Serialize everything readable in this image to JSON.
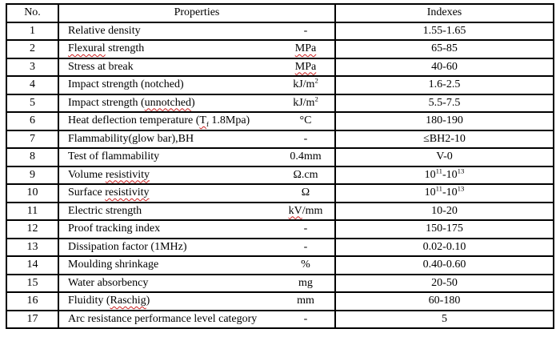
{
  "page": {
    "background": "#ffffff",
    "border_color": "#000000",
    "spellcheck_squiggle_color": "#cc2020"
  },
  "table": {
    "headers": {
      "no": "No.",
      "properties": "Properties",
      "indexes": "Indexes"
    },
    "rows": [
      {
        "no": "1",
        "property": [
          {
            "t": "Relative density"
          }
        ],
        "unit": [
          {
            "t": "-"
          }
        ],
        "index": [
          {
            "t": "1.55-1.65"
          }
        ]
      },
      {
        "no": "2",
        "property": [
          {
            "t": "Flexural",
            "sq": true
          },
          {
            "t": " strength"
          }
        ],
        "unit": [
          {
            "t": "MPa",
            "sq": true
          }
        ],
        "index": [
          {
            "t": "65-85"
          }
        ]
      },
      {
        "no": "3",
        "property": [
          {
            "t": "Stress at break"
          }
        ],
        "unit": [
          {
            "t": "MPa",
            "sq": true
          }
        ],
        "index": [
          {
            "t": "40-60"
          }
        ]
      },
      {
        "no": "4",
        "property": [
          {
            "t": "Impact strength (notched)"
          }
        ],
        "unit": [
          {
            "t": "kJ/m"
          },
          {
            "t": "2",
            "sup": true
          }
        ],
        "index": [
          {
            "t": "1.6-2.5"
          }
        ]
      },
      {
        "no": "5",
        "property": [
          {
            "t": "Impact strength ("
          },
          {
            "t": "unnotched",
            "sq": true
          },
          {
            "t": ")"
          }
        ],
        "unit": [
          {
            "t": "kJ/m"
          },
          {
            "t": "2",
            "sup": true
          }
        ],
        "index": [
          {
            "t": "5.5-7.5"
          }
        ]
      },
      {
        "no": "6",
        "property": [
          {
            "t": "Heat deflection temperature ("
          },
          {
            "t": "T",
            "sq": true
          },
          {
            "t": "f",
            "sub": true,
            "sq": true
          },
          {
            "t": " 1.8Mpa)"
          }
        ],
        "unit": [
          {
            "t": "°C"
          }
        ],
        "index": [
          {
            "t": "180-190"
          }
        ]
      },
      {
        "no": "7",
        "property": [
          {
            "t": "Flammability(glow bar),BH"
          }
        ],
        "unit": [
          {
            "t": "-"
          }
        ],
        "index": [
          {
            "t": "≤BH2-10"
          }
        ]
      },
      {
        "no": "8",
        "property": [
          {
            "t": "Test of flammability"
          }
        ],
        "unit": [
          {
            "t": "0.4mm"
          }
        ],
        "index": [
          {
            "t": "V-0"
          }
        ]
      },
      {
        "no": "9",
        "property": [
          {
            "t": "Volume "
          },
          {
            "t": "resistivity",
            "sq": true
          }
        ],
        "unit": [
          {
            "t": "Ω.cm"
          }
        ],
        "index": [
          {
            "t": "10"
          },
          {
            "t": "11",
            "sup": true
          },
          {
            "t": "-10"
          },
          {
            "t": "13",
            "sup": true
          }
        ]
      },
      {
        "no": "10",
        "property": [
          {
            "t": "Surface "
          },
          {
            "t": "resistivity",
            "sq": true
          }
        ],
        "unit": [
          {
            "t": "Ω"
          }
        ],
        "index": [
          {
            "t": "10"
          },
          {
            "t": "11",
            "sup": true
          },
          {
            "t": "-10"
          },
          {
            "t": "13",
            "sup": true
          }
        ]
      },
      {
        "no": "11",
        "property": [
          {
            "t": "Electric strength"
          }
        ],
        "unit": [
          {
            "t": "kV",
            "sq": true
          },
          {
            "t": "/mm"
          }
        ],
        "index": [
          {
            "t": "10-20"
          }
        ]
      },
      {
        "no": "12",
        "property": [
          {
            "t": "Proof tracking index"
          }
        ],
        "unit": [
          {
            "t": "-"
          }
        ],
        "index": [
          {
            "t": "150-175"
          }
        ]
      },
      {
        "no": "13",
        "property": [
          {
            "t": "Dissipation factor (1MHz)"
          }
        ],
        "unit": [
          {
            "t": "-"
          }
        ],
        "index": [
          {
            "t": "0.02-0.10"
          }
        ]
      },
      {
        "no": "14",
        "property": [
          {
            "t": "Moulding shrinkage"
          }
        ],
        "unit": [
          {
            "t": "%"
          }
        ],
        "index": [
          {
            "t": "0.40-0.60"
          }
        ]
      },
      {
        "no": "15",
        "property": [
          {
            "t": "Water absorbency"
          }
        ],
        "unit": [
          {
            "t": "mg"
          }
        ],
        "index": [
          {
            "t": "20-50"
          }
        ]
      },
      {
        "no": "16",
        "property": [
          {
            "t": "Fluidity ("
          },
          {
            "t": "Raschig",
            "sq": true
          },
          {
            "t": ")"
          }
        ],
        "unit": [
          {
            "t": "mm"
          }
        ],
        "index": [
          {
            "t": "60-180"
          }
        ]
      },
      {
        "no": "17",
        "property": [
          {
            "t": "Arc resistance performance level category"
          }
        ],
        "unit": [
          {
            "t": "-"
          }
        ],
        "index": [
          {
            "t": "5"
          }
        ]
      }
    ]
  }
}
